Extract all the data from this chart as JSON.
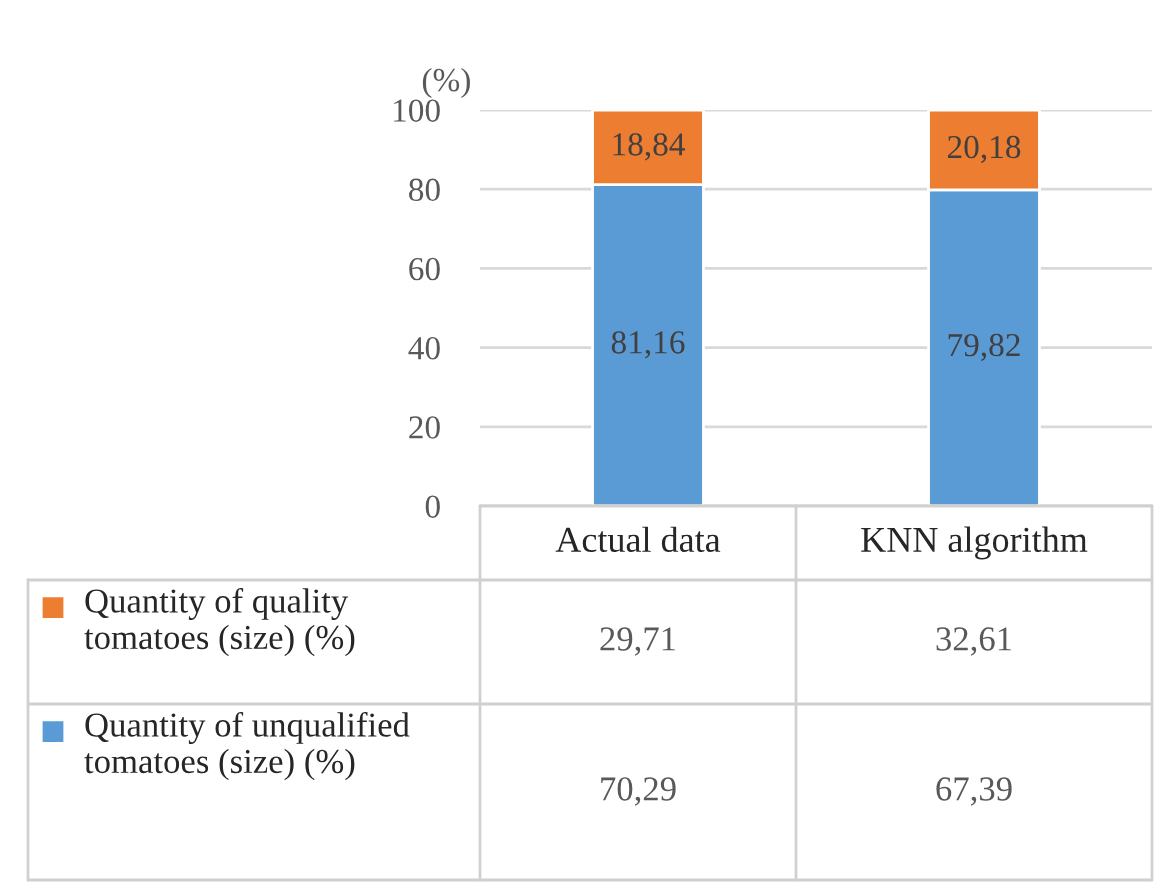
{
  "chart_data": {
    "type": "bar",
    "stacked": true,
    "ylabel": "(%)",
    "categories": [
      "Actual data",
      "KNN algorithm"
    ],
    "series": [
      {
        "name": "Quantity of unqualified tomatoes (size) (%)",
        "color": "#5b9bd5",
        "values": [
          81.16,
          79.82
        ],
        "value_labels": [
          "81,16",
          "79,82"
        ]
      },
      {
        "name": "Quantity of quality tomatoes (size) (%)",
        "color": "#ed7d31",
        "values": [
          18.84,
          20.18
        ],
        "value_labels": [
          "18,84",
          "20,18"
        ]
      }
    ],
    "ylim": [
      0,
      100
    ],
    "yticks": [
      0,
      20,
      40,
      60,
      80,
      100
    ],
    "grid": "y",
    "legend": "bottom",
    "annotations": [
      "29,71",
      "32,61",
      "70,29",
      "67,39"
    ]
  }
}
